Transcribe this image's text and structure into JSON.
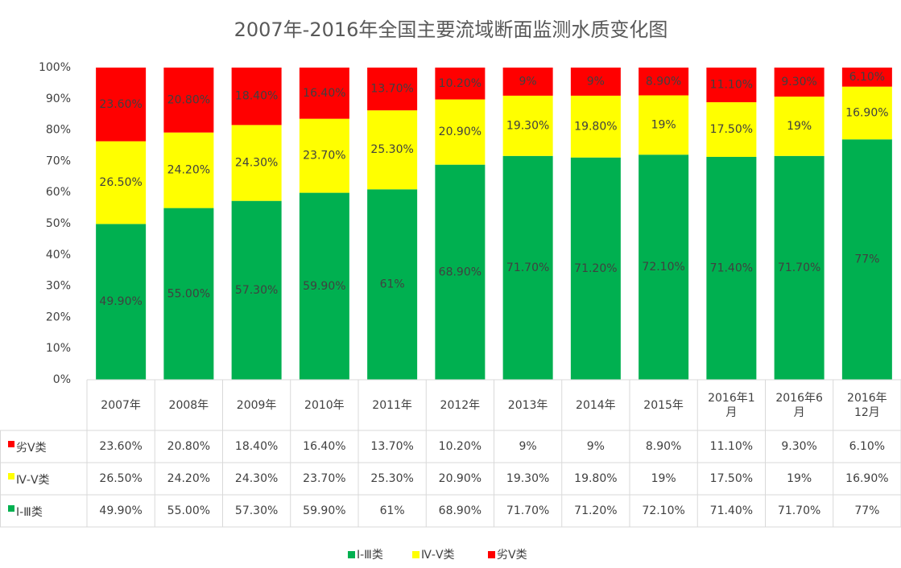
{
  "chart_data": {
    "type": "stacked_bar",
    "title": "2007年-2016年全国主要流域断面监测水质变化图",
    "categories": [
      "2007年",
      "2008年",
      "2009年",
      "2010年",
      "2011年",
      "2012年",
      "2013年",
      "2014年",
      "2015年",
      "2016年1月",
      "2016年6月",
      "2016年12月"
    ],
    "series": [
      {
        "name": "劣Ⅴ类",
        "color": "#ff0000",
        "values": [
          23.6,
          20.8,
          18.4,
          16.4,
          13.7,
          10.2,
          9,
          9,
          8.9,
          11.1,
          9.3,
          6.1
        ],
        "value_labels": [
          "23.60%",
          "20.80%",
          "18.40%",
          "16.40%",
          "13.70%",
          "10.20%",
          "9%",
          "9%",
          "8.90%",
          "11.10%",
          "9.30%",
          "6.10%"
        ]
      },
      {
        "name": "Ⅳ-Ⅴ类",
        "color": "#ffff00",
        "values": [
          26.5,
          24.2,
          24.3,
          23.7,
          25.3,
          20.9,
          19.3,
          19.8,
          19,
          17.5,
          19,
          16.9
        ],
        "value_labels": [
          "26.50%",
          "24.20%",
          "24.30%",
          "23.70%",
          "25.30%",
          "20.90%",
          "19.30%",
          "19.80%",
          "19%",
          "17.50%",
          "19%",
          "16.90%"
        ]
      },
      {
        "name": "Ⅰ-Ⅲ类",
        "color": "#00b050",
        "values": [
          49.9,
          55.0,
          57.3,
          59.9,
          61,
          68.9,
          71.7,
          71.2,
          72.1,
          71.4,
          71.7,
          77
        ],
        "value_labels": [
          "49.90%",
          "55.00%",
          "57.30%",
          "59.90%",
          "61%",
          "68.90%",
          "71.70%",
          "71.20%",
          "72.10%",
          "71.40%",
          "71.70%",
          "77%"
        ]
      }
    ],
    "ylim": [
      0,
      100
    ],
    "yticks": [
      {
        "value": 0,
        "label": "0%"
      },
      {
        "value": 10,
        "label": "10%"
      },
      {
        "value": 20,
        "label": "20%"
      },
      {
        "value": 30,
        "label": "30%"
      },
      {
        "value": 40,
        "label": "40%"
      },
      {
        "value": 50,
        "label": "50%"
      },
      {
        "value": 60,
        "label": "60%"
      },
      {
        "value": 70,
        "label": "70%"
      },
      {
        "value": 80,
        "label": "80%"
      },
      {
        "value": 90,
        "label": "90%"
      },
      {
        "value": 100,
        "label": "100%"
      }
    ],
    "legend": "bottom"
  }
}
